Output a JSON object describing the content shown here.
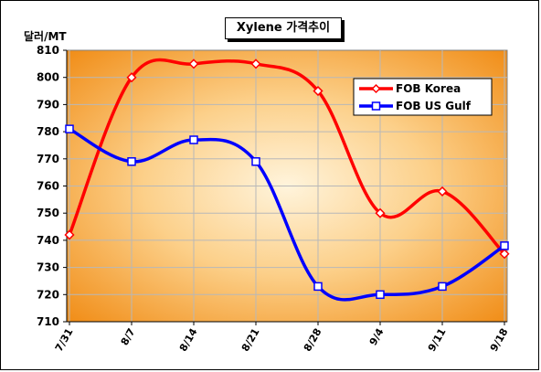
{
  "chart_data": {
    "type": "line",
    "title": "Xylene 가격추이",
    "ylabel": "달러/MT",
    "xlabel": "",
    "categories": [
      "7/31",
      "8/7",
      "8/14",
      "8/21",
      "8/28",
      "9/4",
      "9/11",
      "9/18"
    ],
    "ylim": [
      710,
      810
    ],
    "yticks": [
      710,
      720,
      730,
      740,
      750,
      760,
      770,
      780,
      790,
      800,
      810
    ],
    "grid": true,
    "legend_position": "top-right",
    "series": [
      {
        "name": "FOB Korea",
        "color": "#ff0000",
        "marker": "diamond",
        "values": [
          742,
          800,
          805,
          805,
          795,
          750,
          758,
          735
        ]
      },
      {
        "name": "FOB US Gulf",
        "color": "#0000ff",
        "marker": "square",
        "values": [
          781,
          769,
          777,
          769,
          723,
          720,
          723,
          738
        ]
      }
    ],
    "colors": {
      "plot_center": "#fff4dc",
      "plot_edge": "#f39a1e",
      "gridline": "#b0b0b0"
    }
  }
}
